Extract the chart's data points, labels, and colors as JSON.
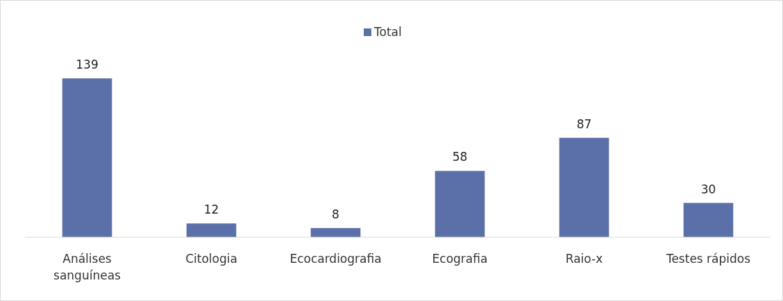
{
  "chart_data": {
    "type": "bar",
    "categories": [
      "Análises sanguíneas",
      "Citologia",
      "Ecocardiografia",
      "Ecografia",
      "Raio-x",
      "Testes rápidos"
    ],
    "series": [
      {
        "name": "Total",
        "color": "#5b6fa8",
        "values": [
          139,
          12,
          8,
          58,
          87,
          30
        ]
      }
    ],
    "data_labels": true,
    "legend": "top"
  }
}
